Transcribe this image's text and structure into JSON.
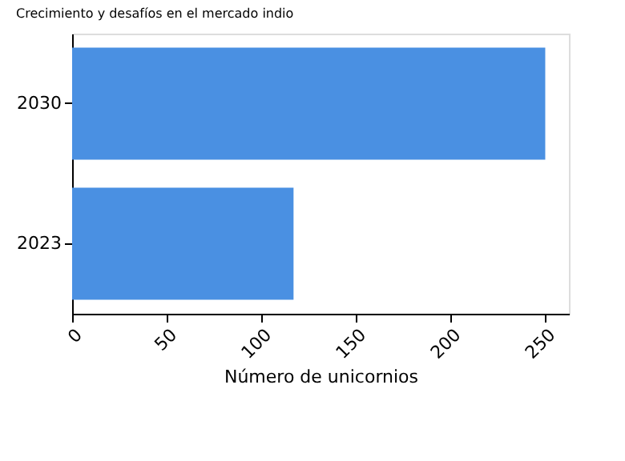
{
  "chart_data": {
    "type": "bar",
    "orientation": "horizontal",
    "title": "Crecimiento y desafíos en el mercado indio",
    "xlabel": "Número de unicornios",
    "categories": [
      "2030",
      "2023"
    ],
    "values": [
      250,
      117
    ],
    "color": "#4a90e2",
    "xlim": [
      0,
      262.5
    ],
    "xticks": [
      0,
      50,
      100,
      150,
      200,
      250
    ],
    "grid": false
  }
}
